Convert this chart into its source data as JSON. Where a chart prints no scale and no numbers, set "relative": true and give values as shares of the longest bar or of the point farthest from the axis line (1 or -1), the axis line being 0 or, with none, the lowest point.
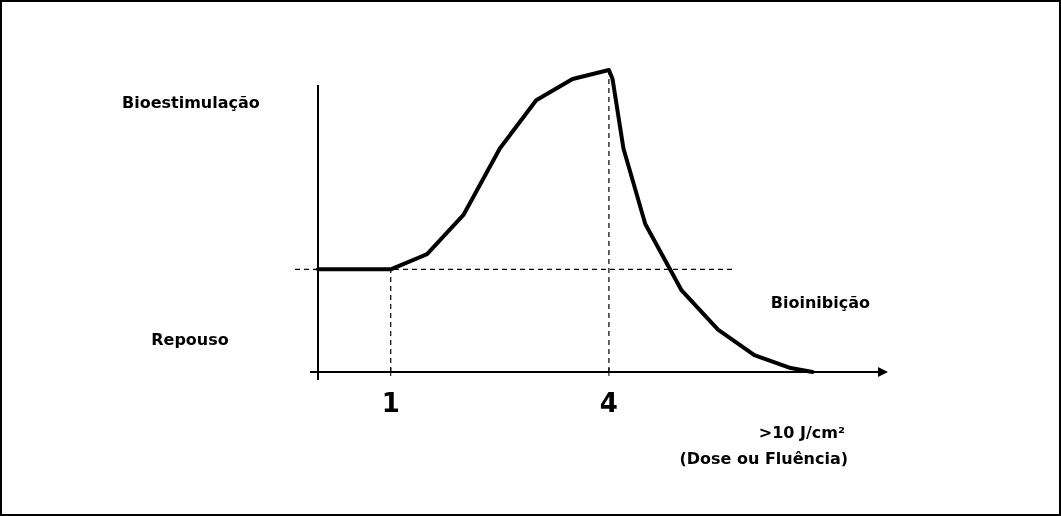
{
  "chart_data": {
    "type": "line",
    "relative": true,
    "ylabel": "Bioestimulação",
    "xlabel": ">10 J/cm²\n(Dose ou Fluência)",
    "annotations": [
      "Repouso",
      "Bioinibição"
    ],
    "xlim": [
      0,
      7.7
    ],
    "xticks": [
      1,
      4
    ],
    "line_style": "solid",
    "series": [
      {
        "color": "#000000",
        "x": [
          0,
          1,
          1.5,
          2,
          2.5,
          3,
          3.5,
          4,
          4.05,
          4.2,
          4.5,
          5,
          5.5,
          6,
          6.5,
          6.8
        ],
        "values": [
          0.34,
          0.34,
          0.39,
          0.52,
          0.74,
          0.9,
          0.97,
          1,
          0.97,
          0.74,
          0.49,
          0.27,
          0.14,
          0.056,
          0.013,
          0
        ]
      }
    ],
    "ref_lines": [
      {
        "axis": "y",
        "value": 0.34,
        "line_style": "dashed"
      },
      {
        "axis": "x",
        "value": 1,
        "line_style": "dashed"
      },
      {
        "axis": "x",
        "value": 4,
        "line_style": "dashed"
      }
    ]
  }
}
